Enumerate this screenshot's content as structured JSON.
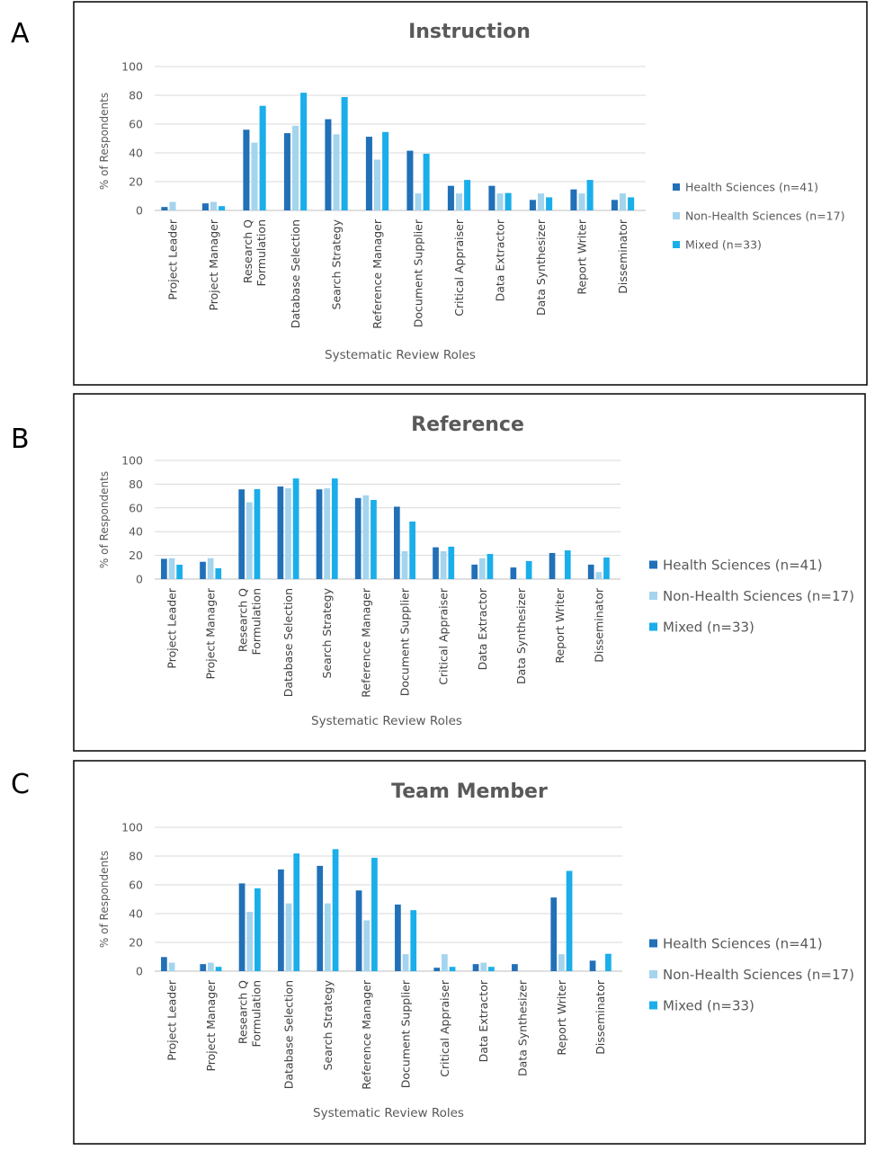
{
  "colors": {
    "health_sciences": "#2170b8",
    "non_health_sciences": "#a4d4ee",
    "mixed": "#1aaeea"
  },
  "chart_data": [
    {
      "panel": "A",
      "type": "bar",
      "title": "Instruction",
      "xlabel": "Systematic Review Roles",
      "ylabel": "% of Respondents",
      "ylim": [
        0,
        100
      ],
      "yticks": [
        0,
        20,
        40,
        60,
        80,
        100
      ],
      "grid": true,
      "legend_position": "right",
      "categories": [
        "Project Leader",
        "Project Manager",
        "Research Q Formulation",
        "Database Selection",
        "Search Strategy",
        "Reference Manager",
        "Document Supplier",
        "Critical Appraiser",
        "Data Extractor",
        "Data Synthesizer",
        "Report Writer",
        "Disseminator"
      ],
      "series": [
        {
          "name": "Health Sciences (n=41)",
          "values": [
            2.4,
            4.9,
            56.1,
            53.7,
            63.4,
            51.2,
            41.5,
            17.1,
            17.1,
            7.3,
            14.6,
            7.3
          ]
        },
        {
          "name": "Non-Health Sciences (n=17)",
          "values": [
            5.9,
            5.9,
            47.1,
            58.8,
            52.9,
            35.3,
            11.8,
            11.8,
            11.8,
            11.8,
            11.8,
            11.8
          ]
        },
        {
          "name": "Mixed (n=33)",
          "values": [
            0,
            3.0,
            72.7,
            81.8,
            78.8,
            54.5,
            39.4,
            21.2,
            12.1,
            9.1,
            21.2,
            9.1
          ]
        }
      ]
    },
    {
      "panel": "B",
      "type": "bar",
      "title": "Reference",
      "xlabel": "Systematic Review Roles",
      "ylabel": "% of Respondents",
      "ylim": [
        0,
        100
      ],
      "yticks": [
        0,
        20,
        40,
        60,
        80,
        100
      ],
      "grid": true,
      "legend_position": "right",
      "categories": [
        "Project Leader",
        "Project Manager",
        "Research Q Formulation",
        "Database Selection",
        "Search Strategy",
        "Reference Manager",
        "Document Supplier",
        "Critical Appraiser",
        "Data Extractor",
        "Data Synthesizer",
        "Report Writer",
        "Disseminator"
      ],
      "series": [
        {
          "name": "Health Sciences (n=41)",
          "values": [
            17.1,
            14.6,
            75.6,
            78.0,
            75.6,
            68.3,
            61.0,
            26.8,
            12.2,
            9.8,
            22.0,
            12.2
          ]
        },
        {
          "name": "Non-Health Sciences (n=17)",
          "values": [
            17.6,
            17.6,
            64.7,
            76.5,
            76.5,
            70.6,
            23.5,
            23.5,
            17.6,
            0,
            0,
            5.9
          ]
        },
        {
          "name": "Mixed (n=33)",
          "values": [
            12.1,
            9.1,
            75.8,
            84.8,
            84.8,
            66.7,
            48.5,
            27.3,
            21.2,
            15.2,
            24.2,
            18.2
          ]
        }
      ]
    },
    {
      "panel": "C",
      "type": "bar",
      "title": "Team Member",
      "xlabel": "Systematic Review Roles",
      "ylabel": "% of Respondents",
      "ylim": [
        0,
        100
      ],
      "yticks": [
        0,
        20,
        40,
        60,
        80,
        100
      ],
      "grid": true,
      "legend_position": "right",
      "categories": [
        "Project Leader",
        "Project Manager",
        "Research Q Formulation",
        "Database Selection",
        "Search Strategy",
        "Reference Manager",
        "Document Supplier",
        "Critical Appraiser",
        "Data Extractor",
        "Data Synthesizer",
        "Report Writer",
        "Disseminator"
      ],
      "series": [
        {
          "name": "Health Sciences (n=41)",
          "values": [
            9.8,
            4.9,
            61.0,
            70.7,
            73.2,
            56.1,
            46.3,
            2.4,
            4.9,
            4.9,
            51.2,
            7.3
          ]
        },
        {
          "name": "Non-Health Sciences (n=17)",
          "values": [
            5.9,
            5.9,
            41.2,
            47.1,
            47.1,
            35.3,
            11.8,
            11.8,
            5.9,
            0,
            11.8,
            0
          ]
        },
        {
          "name": "Mixed (n=33)",
          "values": [
            0,
            3.0,
            57.6,
            81.8,
            84.8,
            78.8,
            42.4,
            3.0,
            3.0,
            0,
            69.7,
            12.1
          ]
        }
      ]
    }
  ]
}
